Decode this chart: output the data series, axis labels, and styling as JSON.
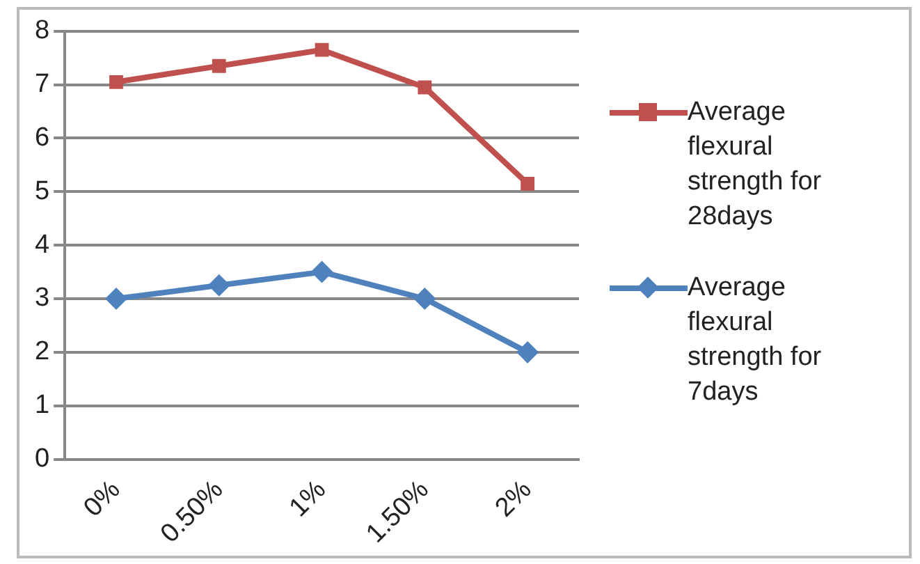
{
  "chart_data": {
    "type": "line",
    "categories": [
      "0%",
      "0.50%",
      "1%",
      "1.50%",
      "2%"
    ],
    "series": [
      {
        "name": "Average flexural strength for 28days",
        "color": "#c0504d",
        "marker": "square",
        "values": [
          7.05,
          7.35,
          7.65,
          6.95,
          5.15
        ]
      },
      {
        "name": "Average flexural strength for 7days",
        "color": "#4f81bd",
        "marker": "diamond",
        "values": [
          3.0,
          3.25,
          3.5,
          3.0,
          2.0
        ]
      }
    ],
    "ylim": [
      0,
      8
    ],
    "yticks": [
      0,
      1,
      2,
      3,
      4,
      5,
      6,
      7,
      8
    ],
    "grid": "y",
    "legend": "right"
  }
}
